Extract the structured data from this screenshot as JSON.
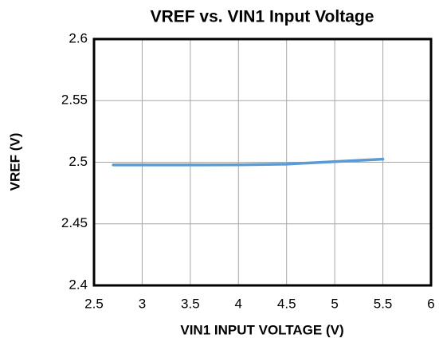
{
  "chart_data": {
    "type": "line",
    "title": "VREF vs. VIN1 Input Voltage",
    "xlabel": "VIN1 INPUT VOLTAGE (V)",
    "ylabel": "VREF (V)",
    "x": [
      2.7,
      3,
      3.5,
      4,
      4.5,
      5,
      5.5
    ],
    "series": [
      {
        "name": "VREF",
        "color": "#5b9bd5",
        "values": [
          2.4978,
          2.4978,
          2.4978,
          2.4979,
          2.4985,
          2.5005,
          2.5025
        ]
      }
    ],
    "xlim": [
      2.5,
      6
    ],
    "xticks": [
      2.5,
      3,
      3.5,
      4,
      4.5,
      5,
      5.5,
      6
    ],
    "ylim": [
      2.4,
      2.6
    ],
    "yticks": [
      2.4,
      2.45,
      2.5,
      2.55,
      2.6
    ],
    "grid": true
  }
}
